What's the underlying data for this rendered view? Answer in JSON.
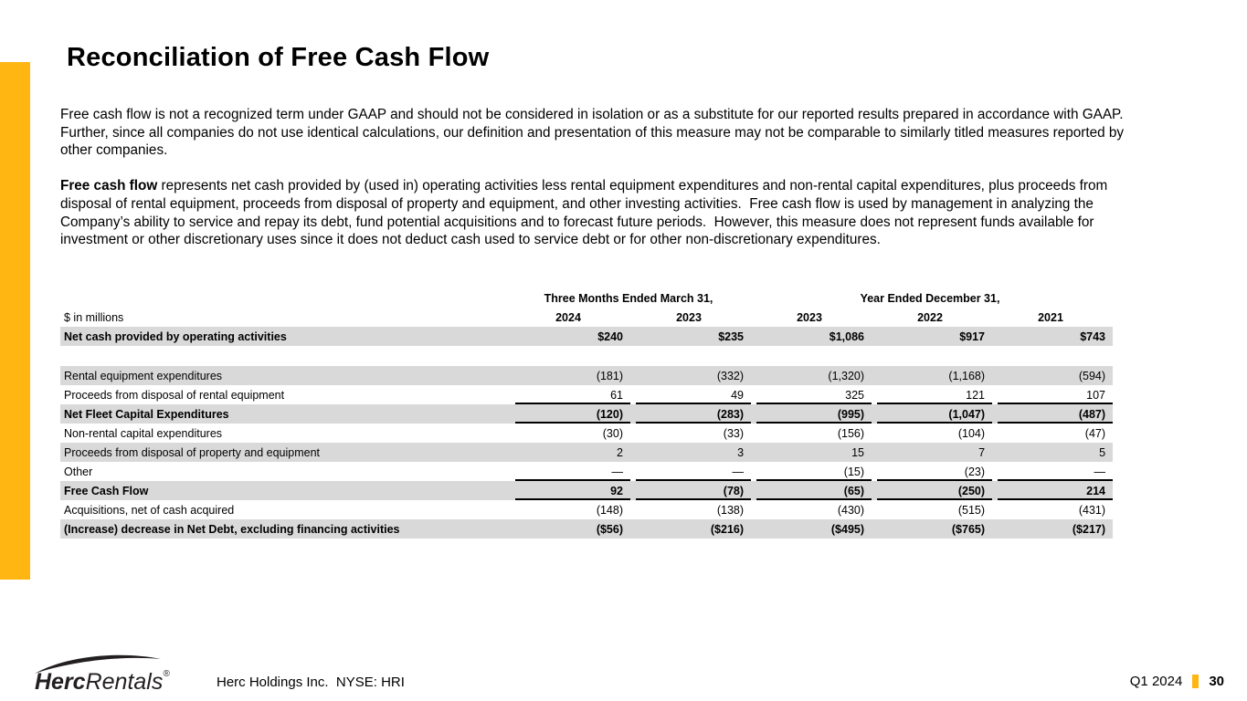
{
  "slide": {
    "title": "Reconciliation of Free Cash Flow",
    "paragraph1": "Free cash flow is not a recognized term under GAAP and should not be considered in isolation or as a substitute for our reported results prepared in accordance with GAAP.  Further, since all companies do not use identical calculations, our definition and presentation of this measure may not be comparable to similarly titled measures reported by other companies.",
    "paragraph2_bold": "Free cash flow",
    "paragraph2_rest": " represents net cash provided by (used in) operating activities less rental equipment expenditures and non-rental capital expenditures, plus proceeds from disposal of rental equipment, proceeds from disposal of property and equipment, and other investing activities.  Free cash flow is used by management in analyzing the Company’s ability to service and repay its debt, fund potential acquisitions and to forecast future periods.  However, this measure does not represent funds available for investment or other discretionary uses since it does not deduct cash used to service debt or for other non-discretionary expenditures."
  },
  "table": {
    "unit_label": "$ in millions",
    "group_headers": [
      {
        "label": "Three Months Ended March 31,",
        "span": 2
      },
      {
        "label": "Year Ended December 31,",
        "span": 3
      }
    ],
    "years": [
      "2024",
      "2023",
      "2023",
      "2022",
      "2021"
    ],
    "rows": [
      {
        "label": "Net cash provided by operating activities",
        "values": [
          "$240",
          "$235",
          "$1,086",
          "$917",
          "$743"
        ],
        "bold": true,
        "shaded": true,
        "underline": false
      },
      {
        "spacer": true
      },
      {
        "label": "Rental equipment expenditures",
        "values": [
          "(181)",
          "(332)",
          "(1,320)",
          "(1,168)",
          "(594)"
        ],
        "bold": false,
        "shaded": true,
        "underline": false
      },
      {
        "label": "Proceeds from disposal of rental equipment",
        "values": [
          "61",
          "49",
          "325",
          "121",
          "107"
        ],
        "bold": false,
        "shaded": false,
        "underline": true
      },
      {
        "label": "Net Fleet Capital Expenditures",
        "values": [
          "(120)",
          "(283)",
          "(995)",
          "(1,047)",
          "(487)"
        ],
        "bold": true,
        "shaded": true,
        "underline": true
      },
      {
        "label": "Non-rental capital expenditures",
        "values": [
          "(30)",
          "(33)",
          "(156)",
          "(104)",
          "(47)"
        ],
        "bold": false,
        "shaded": false,
        "underline": false
      },
      {
        "label": "Proceeds from disposal of property and equipment",
        "values": [
          "2",
          "3",
          "15",
          "7",
          "5"
        ],
        "bold": false,
        "shaded": true,
        "underline": false
      },
      {
        "label": "Other",
        "values": [
          "—",
          "—",
          "(15)",
          "(23)",
          "—"
        ],
        "bold": false,
        "shaded": false,
        "underline": true
      },
      {
        "label": "Free Cash Flow",
        "values": [
          "92",
          "(78)",
          "(65)",
          "(250)",
          "214"
        ],
        "bold": true,
        "shaded": true,
        "underline": true
      },
      {
        "label": "Acquisitions, net of cash acquired",
        "values": [
          "(148)",
          "(138)",
          "(430)",
          "(515)",
          "(431)"
        ],
        "bold": false,
        "shaded": false,
        "underline": false
      },
      {
        "label": "(Increase) decrease in Net Debt, excluding financing activities",
        "values": [
          "($56)",
          "($216)",
          "($495)",
          "($765)",
          "($217)"
        ],
        "bold": true,
        "shaded": true,
        "underline": false
      }
    ]
  },
  "footer": {
    "logo_bold": "Herc",
    "logo_italic": "Rentals",
    "logo_reg_mark": "®",
    "company_line": "Herc Holdings Inc.  NYSE: HRI",
    "period": "Q1 2024",
    "page_number": "30"
  },
  "colors": {
    "accent_yellow": "#FFB612",
    "row_shade": "#D9D9D9",
    "logo_black": "#231F20"
  }
}
